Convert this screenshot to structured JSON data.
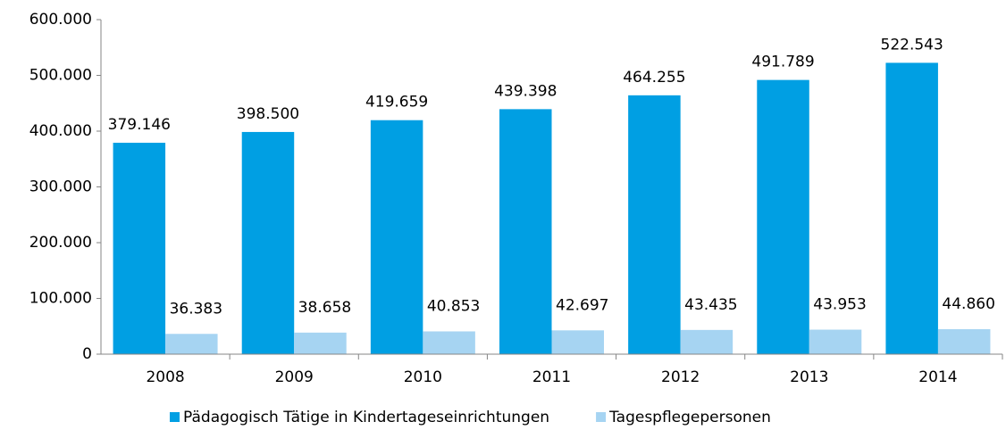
{
  "chart_data": {
    "type": "bar",
    "categories": [
      "2008",
      "2009",
      "2010",
      "2011",
      "2012",
      "2013",
      "2014"
    ],
    "series": [
      {
        "name": "Pädagogisch Tätige in Kindertageseinrichtungen",
        "color": "#009fe3",
        "values": [
          379146,
          398500,
          419659,
          439398,
          464255,
          491789,
          522543
        ],
        "value_labels": [
          "379.146",
          "398.500",
          "419.659",
          "439.398",
          "464.255",
          "491.789",
          "522.543"
        ]
      },
      {
        "name": "Tagespflegepersonen",
        "color": "#a6d4f2",
        "values": [
          36383,
          38658,
          40853,
          42697,
          43435,
          43953,
          44860
        ],
        "value_labels": [
          "36.383",
          "38.658",
          "40.853",
          "42.697",
          "43.435",
          "43.953",
          "44.860"
        ]
      }
    ],
    "ylim": [
      0,
      600000
    ],
    "yticks": [
      0,
      {
        "value": 100000,
        "label": "100.000"
      },
      {
        "value": 200000,
        "label": "200.000"
      },
      {
        "value": 300000,
        "label": "300.000"
      },
      {
        "value": 400000,
        "label": "400.000"
      },
      {
        "value": 500000,
        "label": "500.000"
      },
      {
        "value": 600000,
        "label": "600.000"
      }
    ],
    "legend": "bottom"
  }
}
